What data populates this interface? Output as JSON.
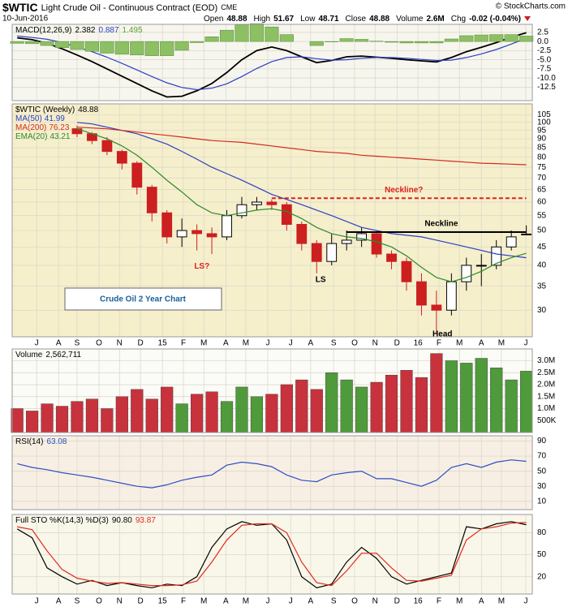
{
  "header": {
    "symbol": "$WTIC",
    "name": "Light Crude Oil - Continuous Contract (EOD)",
    "exchange": "CME",
    "date": "10-Jun-2016",
    "source": "© StockCharts.com",
    "quote": [
      {
        "label": "Open",
        "value": "48.88"
      },
      {
        "label": "High",
        "value": "51.67"
      },
      {
        "label": "Low",
        "value": "48.71"
      },
      {
        "label": "Close",
        "value": "48.88"
      },
      {
        "label": "Volume",
        "value": "2.6M"
      },
      {
        "label": "Chg",
        "value": "-0.02 (-0.04%)"
      }
    ]
  },
  "chart_data": {
    "type": "stock",
    "x": [
      1,
      4,
      7,
      10,
      13,
      16,
      19,
      22,
      25,
      28,
      31,
      34,
      37,
      40,
      43,
      46,
      49,
      52,
      55,
      58,
      61,
      64,
      67,
      70,
      73,
      76,
      79,
      82,
      85,
      88,
      91,
      94,
      97,
      100,
      103
    ],
    "xlim": [
      0,
      104.2
    ],
    "xticks": [
      {
        "value": 4.9,
        "label": "J"
      },
      {
        "value": 9.3,
        "label": "A"
      },
      {
        "value": 13,
        "label": "S"
      },
      {
        "value": 17.4,
        "label": "O"
      },
      {
        "value": 21.5,
        "label": "N"
      },
      {
        "value": 25.7,
        "label": "D"
      },
      {
        "value": 30.1,
        "label": "15"
      },
      {
        "value": 34.3,
        "label": "F"
      },
      {
        "value": 38.4,
        "label": "M"
      },
      {
        "value": 42.8,
        "label": "A"
      },
      {
        "value": 46.8,
        "label": "M"
      },
      {
        "value": 51.2,
        "label": "J"
      },
      {
        "value": 55.8,
        "label": "J"
      },
      {
        "value": 59.8,
        "label": "A"
      },
      {
        "value": 64.4,
        "label": "S"
      },
      {
        "value": 68.6,
        "label": "O"
      },
      {
        "value": 72.7,
        "label": "N"
      },
      {
        "value": 77.1,
        "label": "D"
      },
      {
        "value": 81.3,
        "label": "16"
      },
      {
        "value": 85.5,
        "label": "F"
      },
      {
        "value": 89.6,
        "label": "M"
      },
      {
        "value": 94,
        "label": "A"
      },
      {
        "value": 98,
        "label": "M"
      },
      {
        "value": 102.9,
        "label": "J"
      }
    ],
    "grid": true,
    "panels": [
      {
        "type": "macd",
        "title": "MACD(12,26,9)",
        "background": "#f7f6ee",
        "ylim": [
          -16.2,
          4.7
        ],
        "yticks": [
          2.5,
          {
            "value": 0,
            "label": "0.0"
          },
          -2.5,
          {
            "value": -5,
            "label": "-5.0"
          },
          -7.5,
          {
            "value": -10,
            "label": "-10.0"
          },
          -12.5
        ],
        "series": [
          {
            "type": "line",
            "color": "#000000",
            "values": [
              1,
              0.5,
              -0.5,
              -2,
              -3.7,
              -5.5,
              -7.5,
              -9.5,
              -11.5,
              -13.5,
              -15.2,
              -15,
              -13.5,
              -11.5,
              -8.5,
              -5,
              -2.5,
              -1.5,
              -2.5,
              -4.2,
              -5.8,
              -5.2,
              -4.2,
              -4,
              -4.3,
              -4.6,
              -5,
              -5.3,
              -5.6,
              -4.4,
              -2.8,
              -1.6,
              -0.3,
              1.2,
              2.382
            ]
          },
          {
            "type": "line",
            "color": "#2b3fc4",
            "values": [
              1.5,
              1.1,
              0.6,
              -0.3,
              -1.5,
              -2.8,
              -4.3,
              -6,
              -7.8,
              -9.6,
              -11.3,
              -12.6,
              -13.2,
              -12.8,
              -11.6,
              -9.6,
              -7.4,
              -5.5,
              -4.4,
              -4.2,
              -4.7,
              -5.1,
              -5,
              -4.6,
              -4.4,
              -4.4,
              -4.6,
              -4.9,
              -5.2,
              -5.1,
              -4.4,
              -3.4,
              -2.2,
              -0.7,
              0.887
            ]
          },
          {
            "type": "histogram",
            "color": "#8cc063",
            "values": [
              -0.5,
              -0.6,
              -1.1,
              -1.7,
              -2.2,
              -2.7,
              -3.2,
              -3.5,
              -3.7,
              -3.9,
              -3.9,
              -2.4,
              -0.3,
              1.3,
              3.1,
              4.6,
              4.9,
              4,
              1.9,
              0,
              -1.1,
              -0.1,
              0.8,
              0.6,
              0.1,
              -0.2,
              -0.4,
              -0.4,
              -0.4,
              0.7,
              1.6,
              1.8,
              1.9,
              1.9,
              1.495
            ]
          }
        ]
      },
      {
        "type": "candlestick",
        "title": "$WTIC (Weekly)",
        "background": "#f6efcc",
        "log": true,
        "ylim": [
          25.3,
          112.6
        ],
        "yticks": [
          30,
          35,
          40,
          45,
          50,
          55,
          60,
          65,
          70,
          75,
          80,
          85,
          90,
          95,
          100,
          105
        ],
        "series": [
          {
            "type": "candlestick",
            "color": "#000000",
            "down_color": "#cc1f1f",
            "open": [
              null,
              null,
              null,
              null,
              96,
              93,
              89,
              83,
              77,
              66,
              56,
              48,
              50,
              49,
              48,
              55,
              59,
              60,
              59,
              52,
              46,
              41,
              46,
              47,
              49,
              43,
              41,
              36,
              31,
              30,
              36,
              40,
              40,
              45,
              48.88
            ],
            "high": [
              null,
              null,
              null,
              null,
              98,
              94,
              91,
              84,
              78,
              67,
              57,
              54,
              52,
              51,
              57,
              62,
              62,
              61,
              60,
              53,
              47,
              49,
              50,
              51,
              50,
              44,
              42,
              38,
              34,
              38,
              42,
              43,
              47,
              50,
              51.67
            ],
            "low": [
              null,
              null,
              null,
              null,
              91,
              87,
              81,
              74,
              63,
              53,
              46,
              45,
              44,
              43,
              47,
              54,
              57,
              57,
              50,
              44,
              38,
              40,
              44,
              45,
              42,
              39,
              34,
              29,
              26,
              29,
              34,
              35,
              39,
              44,
              48.71
            ],
            "close": [
              null,
              null,
              null,
              null,
              93,
              89,
              83,
              77,
              66,
              56,
              48,
              50,
              49,
              48,
              55,
              59,
              60,
              59,
              52,
              46,
              41,
              46,
              47,
              49,
              43,
              41,
              36,
              31,
              30,
              36,
              40,
              40,
              45,
              48,
              48.88
            ]
          },
          {
            "type": "line",
            "name": "MA(50)",
            "color": "#2b3fc4",
            "values": [
              null,
              null,
              null,
              null,
              100,
              99,
              97,
              95,
              93,
              90,
              87,
              83,
              79,
              75,
              72,
              69,
              66,
              63,
              61,
              59,
              57,
              55,
              53,
              51,
              50,
              49,
              48.5,
              48,
              47,
              46,
              45,
              44,
              43,
              42.5,
              41.99
            ]
          },
          {
            "type": "line",
            "name": "MA(200)",
            "color": "#d42a1e",
            "values": [
              null,
              null,
              null,
              null,
              97,
              96.5,
              96,
              95,
              94,
              93,
              92,
              91,
              90,
              89,
              88.5,
              88,
              87,
              86,
              85,
              84,
              83,
              82.5,
              82,
              81,
              80.5,
              80,
              79.5,
              79,
              78.5,
              78,
              77.5,
              77,
              76.8,
              76.5,
              76.23
            ]
          },
          {
            "type": "line",
            "name": "EMA(20)",
            "color": "#2d8a2d",
            "values": [
              null,
              null,
              null,
              null,
              96,
              93,
              90,
              86,
              81,
              75,
              69,
              64,
              59,
              56,
              55,
              56,
              57,
              57.5,
              56.5,
              54,
              51,
              49,
              48,
              47.5,
              46.5,
              45,
              42.5,
              39.5,
              37,
              36,
              37,
              38.5,
              40.5,
              42,
              43.21
            ]
          }
        ],
        "annotations": [
          {
            "text": "Neckline?",
            "y": 61.5,
            "x": [
              52,
              103
            ],
            "color": "#e0201a",
            "dashed": true
          },
          {
            "text": "Neckline",
            "y": 49.5,
            "x": [
              67,
              103
            ],
            "color": "#000000",
            "dashed": false
          }
        ],
        "labels": [
          {
            "text": "LS?",
            "x": 38,
            "y": 39.7,
            "color": "#e0201a"
          },
          {
            "text": "LS",
            "x": 61.8,
            "y": 36.4,
            "color": "#000000"
          },
          {
            "text": "Head",
            "x": 86.2,
            "y": 25.7,
            "color": "#000000"
          }
        ],
        "note": "Crude Oil 2 Year Chart"
      },
      {
        "type": "volume",
        "title": "Volume",
        "background": "#fbfbf7",
        "ylim": [
          0,
          3490000
        ],
        "yticks": [
          {
            "value": 500000,
            "label": "500K"
          },
          {
            "value": 1000000,
            "label": "1.0M"
          },
          {
            "value": 1500000,
            "label": "1.5M"
          },
          {
            "value": 2000000,
            "label": "2.0M"
          },
          {
            "value": 2500000,
            "label": "2.5M"
          },
          {
            "value": 3000000,
            "label": "3.0M"
          }
        ],
        "series": [
          {
            "type": "volume",
            "color": "#4f9a3a",
            "down_color": "#c8323c",
            "values": [
              1000000,
              900000,
              1200000,
              1100000,
              1300000,
              1400000,
              1000000,
              1500000,
              1800000,
              1400000,
              1900000,
              1200000,
              1600000,
              1700000,
              1300000,
              1900000,
              1500000,
              1600000,
              2000000,
              2200000,
              1800000,
              2500000,
              2200000,
              1900000,
              2100000,
              2400000,
              2600000,
              2300000,
              3300000,
              3000000,
              2900000,
              3100000,
              2700000,
              2200000,
              2562711
            ],
            "value_labels": [
              null,
              null,
              null,
              null,
              null,
              null,
              null,
              null,
              null,
              null,
              null,
              null,
              null,
              null,
              null,
              null,
              null,
              null,
              null,
              null,
              null,
              null,
              null,
              null,
              null,
              null,
              null,
              null,
              null,
              null,
              null,
              null,
              null,
              null,
              "2,562,711"
            ]
          }
        ]
      },
      {
        "type": "oscillator",
        "title": "RSI(14)",
        "background": "#f8efe4",
        "ylim": [
          -1,
          97
        ],
        "yticks": [
          90,
          70,
          50,
          30,
          10
        ],
        "series": [
          {
            "type": "line",
            "color": "#2b4fc4",
            "values": [
              60,
              55,
              52,
              48,
              45,
              42,
              38,
              34,
              30,
              28,
              32,
              38,
              42,
              45,
              58,
              62,
              60,
              56,
              45,
              38,
              36,
              45,
              48,
              50,
              40,
              40,
              35,
              30,
              38,
              55,
              60,
              55,
              62,
              65,
              63.08
            ]
          }
        ]
      },
      {
        "type": "oscillator",
        "title": "Full STO %K(14,3) %D(3)",
        "background": "#f9f7ea",
        "ylim": [
          -3.5,
          104.7
        ],
        "yticks": [
          80,
          50,
          20
        ],
        "series": [
          {
            "type": "line",
            "color": "#000000",
            "values": [
              85,
              73,
              32,
              20,
              10,
              15,
              8,
              12,
              8,
              5,
              10,
              8,
              20,
              60,
              85,
              95,
              90,
              92,
              70,
              20,
              5,
              10,
              40,
              60,
              45,
              20,
              10,
              15,
              20,
              25,
              88,
              85,
              92,
              95,
              90.8
            ],
            "value_labels": [
              null,
              null,
              null,
              null,
              null,
              null,
              null,
              null,
              null,
              null,
              null,
              null,
              null,
              null,
              null,
              null,
              null,
              null,
              null,
              null,
              null,
              null,
              null,
              null,
              null,
              null,
              null,
              null,
              null,
              null,
              null,
              null,
              null,
              null,
              "90.80"
            ]
          },
          {
            "type": "line",
            "color": "#e02a1e",
            "values": [
              88,
              84,
              55,
              30,
              18,
              14,
              11,
              12,
              10,
              8,
              8,
              9,
              14,
              40,
              70,
              90,
              92,
              92,
              80,
              40,
              12,
              8,
              28,
              52,
              52,
              32,
              15,
              14,
              18,
              22,
              70,
              85,
              88,
              93,
              93.87
            ]
          }
        ]
      }
    ]
  }
}
